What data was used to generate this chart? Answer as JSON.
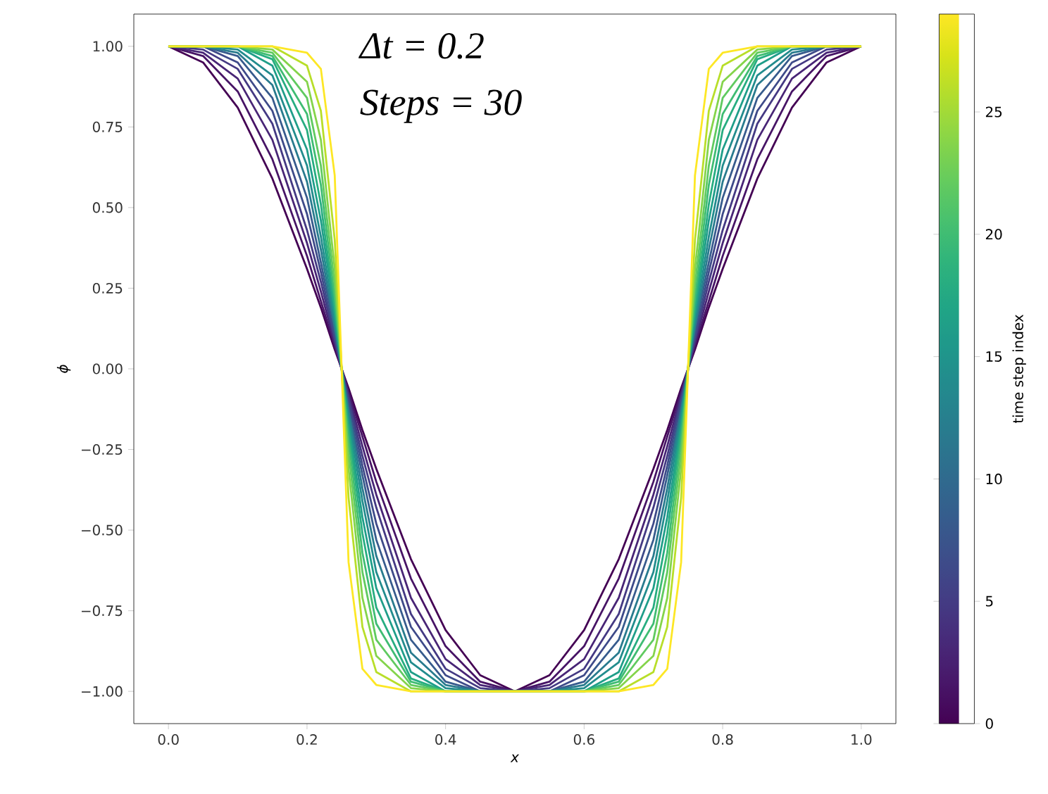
{
  "chart_data": {
    "type": "line",
    "xlabel": "x",
    "ylabel": "ϕ",
    "clabel": "time step index",
    "annotations": [
      "Δt = 0.2",
      "Steps = 30"
    ],
    "xlim": [
      -0.05,
      1.05
    ],
    "ylim": [
      -1.1,
      1.1
    ],
    "xticks": [
      {
        "value": 0,
        "label": "0.0"
      },
      {
        "value": 0.2,
        "label": "0.2"
      },
      {
        "value": 0.4,
        "label": "0.4"
      },
      {
        "value": 0.6,
        "label": "0.6"
      },
      {
        "value": 0.8,
        "label": "0.8"
      },
      {
        "value": 1,
        "label": "1.0"
      }
    ],
    "yticks": [
      {
        "value": -1,
        "label": "−1.00"
      },
      {
        "value": -0.75,
        "label": "−0.75"
      },
      {
        "value": -0.5,
        "label": "−0.50"
      },
      {
        "value": -0.25,
        "label": "−0.25"
      },
      {
        "value": 0,
        "label": "0.00"
      },
      {
        "value": 0.25,
        "label": "0.25"
      },
      {
        "value": 0.5,
        "label": "0.50"
      },
      {
        "value": 0.75,
        "label": "0.75"
      },
      {
        "value": 1,
        "label": "1.00"
      }
    ],
    "clim": [
      0,
      29
    ],
    "cticks": [
      0,
      5,
      10,
      15,
      20,
      25
    ],
    "x": [
      0,
      0.05,
      0.1,
      0.15,
      0.2,
      0.22,
      0.24,
      0.25,
      0.26,
      0.28,
      0.3,
      0.35,
      0.4,
      0.45,
      0.5,
      0.55,
      0.6,
      0.65,
      0.7,
      0.72,
      0.74,
      0.75,
      0.76,
      0.78,
      0.8,
      0.85,
      0.9,
      0.95,
      1
    ],
    "series": [
      {
        "color": "#440154",
        "values": [
          1,
          0.95,
          0.81,
          0.59,
          0.31,
          0.19,
          0.06,
          0,
          -0.06,
          -0.19,
          -0.31,
          -0.59,
          -0.81,
          -0.95,
          -1,
          -0.95,
          -0.81,
          -0.59,
          -0.31,
          -0.19,
          -0.06,
          0,
          0.06,
          0.19,
          0.31,
          0.59,
          0.81,
          0.95,
          1
        ]
      },
      {
        "color": "#471466",
        "values": [
          1,
          0.97,
          0.86,
          0.65,
          0.35,
          0.21,
          0.07,
          0,
          -0.07,
          -0.21,
          -0.35,
          -0.65,
          -0.86,
          -0.97,
          -1,
          -0.97,
          -0.86,
          -0.65,
          -0.35,
          -0.21,
          -0.07,
          0,
          0.07,
          0.21,
          0.35,
          0.65,
          0.86,
          0.97,
          1
        ]
      },
      {
        "color": "#482576",
        "values": [
          1,
          0.98,
          0.9,
          0.71,
          0.39,
          0.24,
          0.08,
          0,
          -0.08,
          -0.24,
          -0.39,
          -0.71,
          -0.9,
          -0.98,
          -1,
          -0.98,
          -0.9,
          -0.71,
          -0.39,
          -0.24,
          -0.08,
          0,
          0.08,
          0.24,
          0.39,
          0.71,
          0.9,
          0.98,
          1
        ]
      },
      {
        "color": "#443983",
        "values": [
          1,
          0.99,
          0.93,
          0.76,
          0.43,
          0.27,
          0.09,
          0,
          -0.09,
          -0.27,
          -0.43,
          -0.76,
          -0.93,
          -0.99,
          -1,
          -0.99,
          -0.93,
          -0.76,
          -0.43,
          -0.27,
          -0.09,
          0,
          0.09,
          0.27,
          0.43,
          0.76,
          0.93,
          0.99,
          1
        ]
      },
      {
        "color": "#3e4a89",
        "values": [
          1,
          1,
          0.95,
          0.8,
          0.48,
          0.3,
          0.1,
          0,
          -0.1,
          -0.3,
          -0.48,
          -0.8,
          -0.95,
          -1,
          -1,
          -1,
          -0.95,
          -0.8,
          -0.48,
          -0.3,
          -0.1,
          0,
          0.1,
          0.3,
          0.48,
          0.8,
          0.95,
          1,
          1
        ]
      },
      {
        "color": "#375b8d",
        "values": [
          1,
          1,
          0.97,
          0.84,
          0.53,
          0.33,
          0.12,
          0,
          -0.12,
          -0.33,
          -0.53,
          -0.84,
          -0.97,
          -1,
          -1,
          -1,
          -0.97,
          -0.84,
          -0.53,
          -0.33,
          -0.12,
          0,
          0.12,
          0.33,
          0.53,
          0.84,
          0.97,
          1,
          1
        ]
      },
      {
        "color": "#297b8e",
        "values": [
          1,
          1,
          0.98,
          0.88,
          0.58,
          0.37,
          0.13,
          0,
          -0.13,
          -0.37,
          -0.58,
          -0.88,
          -0.98,
          -1,
          -1,
          -1,
          -0.98,
          -0.88,
          -0.58,
          -0.37,
          -0.13,
          0,
          0.13,
          0.37,
          0.58,
          0.88,
          0.98,
          1,
          1
        ]
      },
      {
        "color": "#228c8d",
        "values": [
          1,
          1,
          0.99,
          0.91,
          0.63,
          0.41,
          0.15,
          0,
          -0.15,
          -0.41,
          -0.63,
          -0.91,
          -0.99,
          -1,
          -1,
          -1,
          -0.99,
          -0.91,
          -0.63,
          -0.41,
          -0.15,
          0,
          0.15,
          0.41,
          0.63,
          0.91,
          0.99,
          1,
          1
        ]
      },
      {
        "color": "#1f9e89",
        "values": [
          1,
          1,
          1,
          0.94,
          0.68,
          0.46,
          0.17,
          0,
          -0.17,
          -0.46,
          -0.68,
          -0.94,
          -1,
          -1,
          -1,
          -1,
          -1,
          -0.94,
          -0.68,
          -0.46,
          -0.17,
          0,
          0.17,
          0.46,
          0.68,
          0.94,
          1,
          1,
          1
        ]
      },
      {
        "color": "#27ad81",
        "values": [
          1,
          1,
          1,
          0.96,
          0.74,
          0.51,
          0.19,
          0,
          -0.19,
          -0.51,
          -0.74,
          -0.96,
          -1,
          -1,
          -1,
          -1,
          -1,
          -0.96,
          -0.74,
          -0.51,
          -0.19,
          0,
          0.19,
          0.51,
          0.74,
          0.96,
          1,
          1,
          1
        ]
      },
      {
        "color": "#3fbc73",
        "values": [
          1,
          1,
          1,
          0.97,
          0.79,
          0.57,
          0.22,
          0,
          -0.22,
          -0.57,
          -0.79,
          -0.97,
          -1,
          -1,
          -1,
          -1,
          -1,
          -0.97,
          -0.79,
          -0.57,
          -0.22,
          0,
          0.22,
          0.57,
          0.79,
          0.97,
          1,
          1,
          1
        ]
      },
      {
        "color": "#60ca60",
        "values": [
          1,
          1,
          1,
          0.98,
          0.84,
          0.63,
          0.26,
          0,
          -0.26,
          -0.63,
          -0.84,
          -0.98,
          -1,
          -1,
          -1,
          -1,
          -1,
          -0.98,
          -0.84,
          -0.63,
          -0.26,
          0,
          0.26,
          0.63,
          0.84,
          0.98,
          1,
          1,
          1
        ]
      },
      {
        "color": "#84d44b",
        "values": [
          1,
          1,
          1,
          0.99,
          0.89,
          0.71,
          0.31,
          0,
          -0.31,
          -0.71,
          -0.89,
          -0.99,
          -1,
          -1,
          -1,
          -1,
          -1,
          -0.99,
          -0.89,
          -0.71,
          -0.31,
          0,
          0.31,
          0.71,
          0.89,
          0.99,
          1,
          1,
          1
        ]
      },
      {
        "color": "#b8de29",
        "values": [
          1,
          1,
          1,
          1,
          0.94,
          0.8,
          0.4,
          0,
          -0.4,
          -0.8,
          -0.94,
          -1,
          -1,
          -1,
          -1,
          -1,
          -1,
          -1,
          -0.94,
          -0.8,
          -0.4,
          0,
          0.4,
          0.8,
          0.94,
          1,
          1,
          1,
          1
        ]
      },
      {
        "color": "#fde725",
        "values": [
          1,
          1,
          1,
          1,
          0.98,
          0.93,
          0.6,
          0,
          -0.6,
          -0.93,
          -0.98,
          -1,
          -1,
          -1,
          -1,
          -1,
          -1,
          -1,
          -0.98,
          -0.93,
          -0.6,
          0,
          0.6,
          0.93,
          0.98,
          1,
          1,
          1,
          1
        ]
      }
    ]
  }
}
